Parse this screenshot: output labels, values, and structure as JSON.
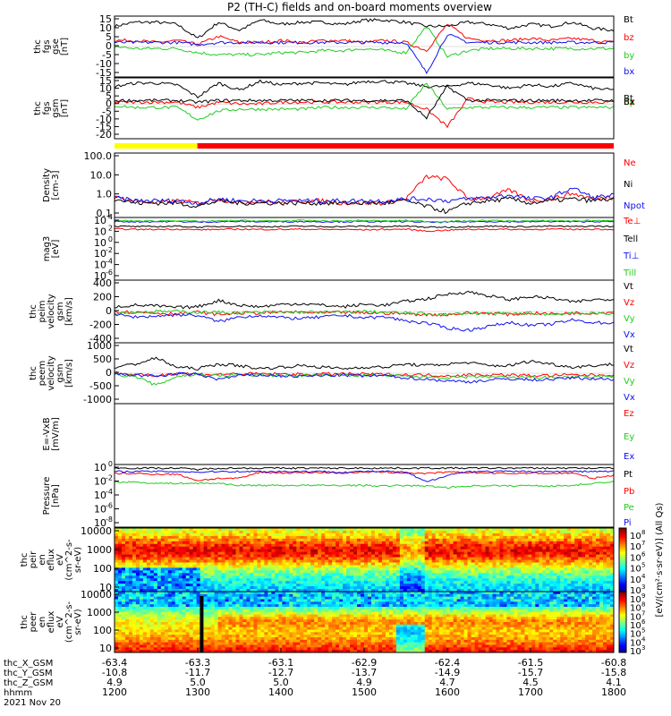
{
  "title": "P2 (TH-C) fields and on-board moments overview",
  "colors": {
    "black": "#000000",
    "red": "#ff0000",
    "green": "#22cc22",
    "blue": "#1010ee",
    "yellow": "#ffff00"
  },
  "chart_data": [
    {
      "type": "line",
      "ylabel": [
        "thc",
        "fgs",
        "gse",
        "[nT]"
      ],
      "yticks": [
        "15",
        "10",
        "5",
        "0",
        "-5",
        "-10",
        "-15"
      ],
      "ylim": [
        -15,
        15
      ],
      "series": [
        {
          "name": "Bt",
          "color": "#000000",
          "y": [
            10,
            12,
            12,
            11,
            4,
            12,
            8,
            13,
            11,
            12,
            12,
            11,
            13,
            13,
            12,
            10,
            10,
            12,
            11,
            9,
            11,
            10,
            12,
            9,
            8
          ]
        },
        {
          "name": "bz",
          "color": "#ff0000",
          "y": [
            3,
            3,
            2,
            3,
            1,
            5,
            2,
            2,
            3,
            2,
            3,
            3,
            2,
            3,
            2,
            -2,
            11,
            4,
            3,
            3,
            4,
            3,
            4,
            3,
            2
          ]
        },
        {
          "name": "by",
          "color": "#22cc22",
          "y": [
            0,
            -1,
            -1,
            -1,
            -3,
            -4,
            -4,
            -4,
            -3,
            -3,
            -2,
            -2,
            -1,
            -2,
            -3,
            10,
            -5,
            -2,
            -1,
            -1,
            -1,
            -1,
            -1,
            -1,
            -1
          ]
        },
        {
          "name": "bx",
          "color": "#1010ee",
          "y": [
            2,
            2,
            2,
            2,
            1,
            2,
            2,
            2,
            2,
            2,
            2,
            2,
            2,
            2,
            2,
            -13,
            6,
            2,
            2,
            2,
            2,
            2,
            2,
            2,
            2
          ]
        }
      ]
    },
    {
      "type": "line",
      "ylabel": [
        "thc",
        "fgs",
        "gsm",
        "[nT]"
      ],
      "yticks": [
        "15",
        "10",
        "5",
        "0",
        "-5",
        "-10",
        "-15",
        "-20"
      ],
      "ylim": [
        -20,
        15
      ],
      "series": [
        {
          "name": "Bt",
          "color": "#000000",
          "y": [
            10,
            12,
            12,
            11,
            4,
            12,
            8,
            13,
            11,
            12,
            12,
            11,
            13,
            13,
            12,
            10,
            10,
            12,
            11,
            9,
            11,
            10,
            12,
            9,
            8
          ]
        },
        {
          "name": "bz",
          "color": "#ff0000",
          "y": [
            1,
            1,
            1,
            1,
            -2,
            1,
            0,
            0,
            1,
            1,
            1,
            1,
            1,
            1,
            1,
            -3,
            -13,
            3,
            1,
            1,
            1,
            1,
            1,
            1,
            1
          ]
        },
        {
          "name": "by",
          "color": "#22cc22",
          "y": [
            -1,
            -2,
            -2,
            -2,
            -9,
            -4,
            -3,
            -3,
            -3,
            -3,
            -2,
            -2,
            -2,
            -2,
            -3,
            12,
            -3,
            -2,
            -2,
            -2,
            -2,
            -2,
            -2,
            -2,
            -2
          ]
        },
        {
          "name": "Bx",
          "color": "#000000",
          "y": [
            2,
            2,
            2,
            2,
            1,
            2,
            2,
            2,
            2,
            2,
            2,
            2,
            2,
            2,
            2,
            -8,
            10,
            2,
            2,
            2,
            2,
            2,
            2,
            2,
            2
          ]
        }
      ]
    },
    {
      "type": "line",
      "yscale": "log",
      "ylabel": [
        "Density",
        "[cm-3]"
      ],
      "yticks": [
        "100.0",
        "10.0",
        "1.0",
        "0.1"
      ],
      "ylim": [
        0.05,
        150
      ],
      "series": [
        {
          "name": "Ne",
          "color": "#ff0000",
          "y": [
            0.6,
            0.4,
            0.3,
            0.4,
            0.3,
            0.5,
            0.3,
            0.4,
            0.3,
            0.4,
            0.4,
            0.3,
            0.3,
            0.3,
            0.5,
            8,
            6,
            0.5,
            0.6,
            1.5,
            0.4,
            0.5,
            1,
            0.5,
            0.7
          ]
        },
        {
          "name": "Ni",
          "color": "#000000",
          "y": [
            0.5,
            0.3,
            0.3,
            0.3,
            0.2,
            0.4,
            0.3,
            0.3,
            0.3,
            0.3,
            0.3,
            0.3,
            0.3,
            0.3,
            0.4,
            0.2,
            0.1,
            0.3,
            0.4,
            0.5,
            0.3,
            0.4,
            0.5,
            0.4,
            0.5
          ]
        },
        {
          "name": "Npot",
          "color": "#1010ee",
          "y": [
            0.6,
            0.4,
            0.4,
            0.4,
            0.3,
            0.5,
            0.4,
            0.4,
            0.4,
            0.4,
            0.4,
            0.4,
            0.4,
            0.4,
            0.5,
            0.5,
            0.4,
            0.5,
            0.6,
            0.8,
            0.5,
            0.6,
            2,
            0.6,
            0.8
          ]
        }
      ]
    },
    {
      "type": "line",
      "yscale": "log",
      "ylabel": [
        "mag3",
        "[eV]"
      ],
      "yticks": [
        "10",
        "10",
        "10",
        "10",
        "10",
        "10"
      ],
      "ytick_exps": [
        "4",
        "2",
        "0",
        "-2",
        "-4",
        "-6"
      ],
      "ylim": [
        1e-07,
        10000.0
      ],
      "series": [
        {
          "name": "Te⊥",
          "color": "#ff0000",
          "y": [
            100,
            80,
            80,
            90,
            70,
            80,
            90,
            80,
            80,
            90,
            80,
            80,
            70,
            80,
            90,
            40,
            60,
            80,
            90,
            80,
            80,
            90,
            80,
            90,
            80
          ]
        },
        {
          "name": "Tell",
          "color": "#000000",
          "y": [
            300,
            250,
            250,
            300,
            200,
            250,
            300,
            250,
            250,
            300,
            250,
            250,
            300,
            250,
            300,
            200,
            200,
            250,
            300,
            250,
            250,
            300,
            250,
            300,
            250
          ]
        },
        {
          "name": "Ti⊥",
          "color": "#1010ee",
          "y": [
            2000,
            1800,
            1800,
            2000,
            1500,
            1800,
            2000,
            1800,
            1800,
            2000,
            1800,
            1800,
            2000,
            1800,
            2000,
            1500,
            1500,
            1800,
            2000,
            1800,
            1800,
            2000,
            1800,
            2000,
            1800
          ]
        },
        {
          "name": "Till",
          "color": "#22cc22",
          "y": [
            3000,
            2500,
            2500,
            3000,
            2000,
            2500,
            3000,
            2500,
            2500,
            3000,
            2500,
            2500,
            3000,
            2500,
            3000,
            2000,
            2000,
            2500,
            3000,
            2500,
            2500,
            3000,
            2500,
            3000,
            2500
          ]
        }
      ]
    },
    {
      "type": "line",
      "ylabel": [
        "thc",
        "peim",
        "velocity",
        "gsm",
        "[km/s]"
      ],
      "yticks": [
        "400",
        "200",
        "0",
        "-200",
        "-400"
      ],
      "ylim": [
        -400,
        400
      ],
      "series": [
        {
          "name": "Vt",
          "color": "#000000",
          "y": [
            60,
            80,
            70,
            50,
            60,
            140,
            80,
            60,
            90,
            100,
            80,
            60,
            90,
            80,
            130,
            160,
            220,
            250,
            200,
            150,
            190,
            170,
            120,
            150,
            160
          ]
        },
        {
          "name": "Vz",
          "color": "#ff0000",
          "y": [
            0,
            -10,
            -20,
            -30,
            -10,
            -40,
            -20,
            -20,
            -10,
            -10,
            -20,
            -10,
            -20,
            -20,
            -30,
            -40,
            -40,
            -20,
            -20,
            -40,
            -20,
            -30,
            -20,
            -20,
            -10
          ]
        },
        {
          "name": "Vy",
          "color": "#22cc22",
          "y": [
            -20,
            -10,
            0,
            0,
            -10,
            -10,
            -20,
            -10,
            -10,
            -10,
            -10,
            -10,
            0,
            -10,
            -20,
            -30,
            -40,
            -20,
            -30,
            -30,
            -20,
            -40,
            -20,
            -30,
            -20
          ]
        },
        {
          "name": "Vx",
          "color": "#1010ee",
          "y": [
            -40,
            -70,
            -60,
            -40,
            -50,
            -130,
            -70,
            -50,
            -80,
            -90,
            -70,
            -50,
            -80,
            -70,
            -120,
            -150,
            -210,
            -240,
            -190,
            -140,
            -180,
            -160,
            -110,
            -140,
            -150
          ]
        }
      ]
    },
    {
      "type": "line",
      "ylabel": [
        "thc",
        "peem",
        "velocity",
        "gsm",
        "[km/s]"
      ],
      "yticks": [
        "1000",
        "500",
        "0",
        "-500",
        "-1000"
      ],
      "ylim": [
        -1000,
        1000
      ],
      "series": [
        {
          "name": "Vt",
          "color": "#000000",
          "y": [
            200,
            300,
            500,
            200,
            150,
            300,
            250,
            150,
            200,
            250,
            200,
            150,
            200,
            200,
            300,
            250,
            300,
            350,
            250,
            250,
            400,
            300,
            200,
            250,
            300
          ]
        },
        {
          "name": "Vz",
          "color": "#ff0000",
          "y": [
            20,
            -50,
            -80,
            0,
            -30,
            -40,
            -20,
            -20,
            -30,
            -40,
            -30,
            -20,
            -30,
            -40,
            -50,
            -60,
            -80,
            -60,
            -50,
            -60,
            -80,
            -70,
            -60,
            -60,
            -50
          ]
        },
        {
          "name": "Vy",
          "color": "#22cc22",
          "y": [
            -50,
            -100,
            -400,
            -100,
            -50,
            -80,
            -60,
            -60,
            -70,
            -80,
            -70,
            -60,
            -70,
            -80,
            -100,
            -120,
            -150,
            -130,
            -120,
            -150,
            -130,
            -150,
            -120,
            -130,
            -100
          ]
        },
        {
          "name": "Vx",
          "color": "#1010ee",
          "y": [
            -30,
            -60,
            -100,
            -20,
            -40,
            -200,
            -80,
            -60,
            -90,
            -100,
            -80,
            -60,
            -90,
            -80,
            -150,
            -200,
            -250,
            -280,
            -230,
            -180,
            -220,
            -200,
            -150,
            -180,
            -200
          ]
        }
      ]
    },
    {
      "type": "line",
      "ylabel": [
        "E=-VxB",
        "[mV/m]"
      ],
      "yticks": [],
      "series": [
        {
          "name": "Ez",
          "color": "#ff0000",
          "y": []
        },
        {
          "name": "Ey",
          "color": "#22cc22",
          "y": []
        },
        {
          "name": "Ex",
          "color": "#1010ee",
          "y": []
        }
      ]
    },
    {
      "type": "line",
      "yscale": "log",
      "ylabel": [
        "Pressure",
        "[nPa]"
      ],
      "yticks": [
        "10",
        "10",
        "10",
        "10",
        "10"
      ],
      "ytick_exps": [
        "0",
        "-2",
        "-4",
        "-6",
        "-8"
      ],
      "ylim": [
        1e-09,
        1.0
      ],
      "series": [
        {
          "name": "Pt",
          "color": "#000000",
          "y": [
            0.3,
            0.3,
            0.3,
            0.3,
            0.2,
            0.3,
            0.3,
            0.3,
            0.3,
            0.3,
            0.3,
            0.3,
            0.3,
            0.3,
            0.3,
            0.3,
            0.3,
            0.3,
            0.3,
            0.3,
            0.3,
            0.3,
            0.3,
            0.3,
            0.3
          ]
        },
        {
          "name": "Pb",
          "color": "#ff0000",
          "y": [
            0.05,
            0.05,
            0.04,
            0.04,
            0.005,
            0.01,
            0.01,
            0.08,
            0.06,
            0.07,
            0.07,
            0.06,
            0.08,
            0.08,
            0.06,
            0.05,
            0.08,
            0.07,
            0.06,
            0.05,
            0.06,
            0.05,
            0.06,
            0.01,
            0.03
          ]
        },
        {
          "name": "Pe",
          "color": "#22cc22",
          "y": [
            0.003,
            0.003,
            0.002,
            0.002,
            0.002,
            0.002,
            0.001,
            0.001,
            0.001,
            0.001,
            0.001,
            0.001,
            0.001,
            0.0008,
            0.001,
            0.0008,
            0.0005,
            0.0008,
            0.001,
            0.0008,
            0.001,
            0.0008,
            0.001,
            0.002,
            0.003
          ]
        },
        {
          "name": "Pi",
          "color": "#1010ee",
          "y": [
            0.1,
            0.1,
            0.1,
            0.1,
            0.08,
            0.1,
            0.1,
            0.1,
            0.1,
            0.1,
            0.1,
            0.08,
            0.1,
            0.1,
            0.08,
            0.003,
            0.03,
            0.1,
            0.1,
            0.1,
            0.1,
            0.1,
            0.1,
            0.1,
            0.1
          ]
        }
      ]
    },
    {
      "type": "heatmap",
      "ylabel": [
        "thc",
        "peir",
        "en",
        "eflux",
        "eV",
        "(cm^2-s-",
        "sr-eV)"
      ],
      "yticks": [
        "10000",
        "1000",
        "100",
        "10"
      ],
      "ylim": [
        5,
        25000
      ],
      "colorbar": {
        "ticks": [
          "10",
          "10",
          "10",
          "10",
          "10",
          "10"
        ],
        "exps": [
          "8",
          "7",
          "6",
          "5",
          "4",
          "3"
        ],
        "label": "[eV/(cm²·s·sr·eV)] (All Qs)"
      }
    },
    {
      "type": "heatmap",
      "ylabel": [
        "thc",
        "peer",
        "en",
        "eflux",
        "eV",
        "(cm^2-s-",
        "sr-eV)"
      ],
      "yticks": [
        "10000",
        "1000",
        "100",
        "10"
      ],
      "ylim": [
        5,
        25000
      ],
      "colorbar": {
        "ticks": [
          "10",
          "10",
          "10",
          "10",
          "10",
          "10",
          "10"
        ],
        "exps": [
          "9",
          "8",
          "7",
          "6",
          "5",
          "4",
          "3"
        ]
      }
    }
  ],
  "x_axis": {
    "rows": [
      {
        "label": "thc_X_GSM",
        "values": [
          "-63.4",
          "-63.3",
          "-63.1",
          "-62.9",
          "-62.4",
          "-61.5",
          "-60.8"
        ]
      },
      {
        "label": "thc_Y_GSM",
        "values": [
          "-10.8",
          "-11.7",
          "-12.7",
          "-13.7",
          "-14.9",
          "-15.7",
          "-15.8"
        ]
      },
      {
        "label": "thc_Z_GSM",
        "values": [
          "4.9",
          "5.0",
          "5.0",
          "4.9",
          "4.7",
          "4.5",
          "4.1"
        ]
      },
      {
        "label": "hhmm",
        "values": [
          "1200",
          "1300",
          "1400",
          "1500",
          "1600",
          "1700",
          "1800"
        ]
      }
    ],
    "date": "2021 Nov 20"
  },
  "mode_bar": [
    {
      "from": 0,
      "to": 0.166,
      "color": "#ffff00"
    },
    {
      "from": 0.166,
      "to": 1,
      "color": "#ff0000"
    }
  ]
}
